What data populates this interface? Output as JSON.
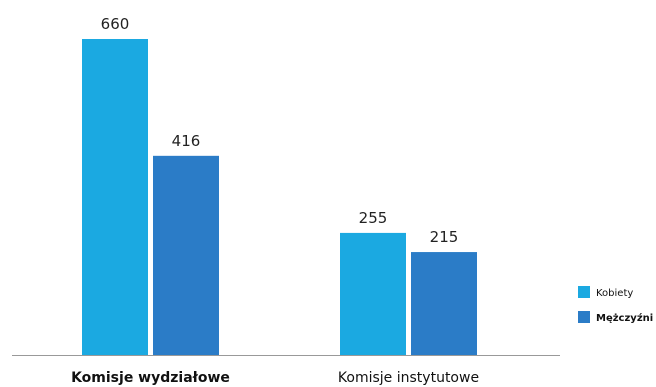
{
  "chart_data": {
    "type": "bar",
    "categories": [
      "Komisje wydziałowe",
      "Komisje instytutowe"
    ],
    "series": [
      {
        "name": "Kobiety",
        "values": [
          660,
          255
        ],
        "color": "#1BA9E1"
      },
      {
        "name": "Mężczyźni",
        "values": [
          416,
          215
        ],
        "color": "#2B7CC7"
      }
    ],
    "title": "",
    "xlabel": "",
    "ylabel": "",
    "ylim": [
      0,
      660
    ],
    "grid": false,
    "legend": "right",
    "data_labels": true,
    "axis_color": "#999999"
  }
}
